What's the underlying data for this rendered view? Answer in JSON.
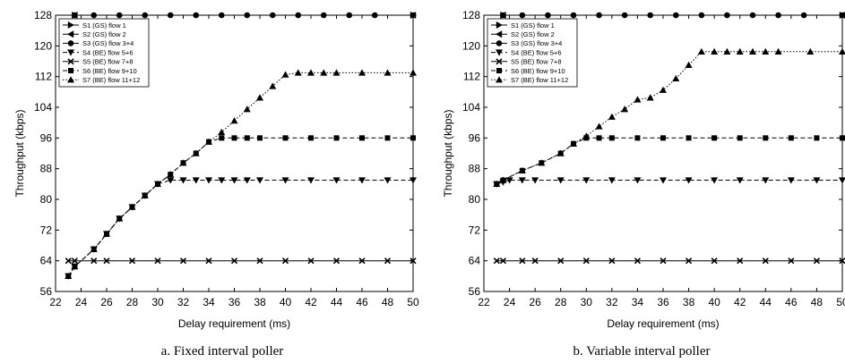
{
  "chart_data": [
    {
      "type": "line",
      "caption": "a. Fixed interval poller",
      "xlabel": "Delay requirement (ms)",
      "ylabel": "Throughput (kbps)",
      "xlim": [
        22,
        50
      ],
      "ylim": [
        56,
        128
      ],
      "xticks": [
        22,
        24,
        26,
        28,
        30,
        32,
        34,
        36,
        38,
        40,
        42,
        44,
        46,
        48,
        50
      ],
      "yticks": [
        56,
        64,
        72,
        80,
        88,
        96,
        104,
        112,
        120,
        128
      ],
      "legend_position": "top-left",
      "series": [
        {
          "name": "S1 (GS) flow 1",
          "marker": "tri-right",
          "line": "solid",
          "x": [
            23.5,
            50
          ],
          "y": [
            128,
            128
          ]
        },
        {
          "name": "S2 (GS) flow 2",
          "marker": "tri-left",
          "line": "solid",
          "x": [
            23.5,
            50
          ],
          "y": [
            128,
            128
          ]
        },
        {
          "name": "S3 (GS) flow 3+4",
          "marker": "circle",
          "line": "solid",
          "x": [
            23.5,
            25,
            27,
            29,
            31,
            33,
            35,
            37,
            39,
            41,
            43,
            45,
            47,
            50
          ],
          "y": [
            128,
            128,
            128,
            128,
            128,
            128,
            128,
            128,
            128,
            128,
            128,
            128,
            128,
            128
          ]
        },
        {
          "name": "S4 (BE) flow 5+6",
          "marker": "tri-down",
          "line": "dashed",
          "x": [
            23,
            23.5,
            25,
            26,
            27,
            28,
            29,
            30,
            31,
            32,
            33,
            34,
            35,
            36,
            37,
            38,
            40,
            42,
            44,
            46,
            48,
            50
          ],
          "y": [
            60,
            62.5,
            67,
            71,
            75,
            78,
            81,
            84,
            85,
            85,
            85,
            85,
            85,
            85,
            85,
            85,
            85,
            85,
            85,
            85,
            85,
            85
          ]
        },
        {
          "name": "S5 (BE) flow 7+8",
          "marker": "cross",
          "line": "solid",
          "x": [
            23,
            23.5,
            25,
            26,
            28,
            30,
            32,
            34,
            36,
            38,
            40,
            42,
            44,
            46,
            48,
            50
          ],
          "y": [
            64,
            64,
            64,
            64,
            64,
            64,
            64,
            64,
            64,
            64,
            64,
            64,
            64,
            64,
            64,
            64
          ]
        },
        {
          "name": "S6 (BE) flow 9+10",
          "marker": "square",
          "line": "dashed",
          "x": [
            23,
            23.5,
            25,
            26,
            27,
            28,
            29,
            30,
            31,
            32,
            33,
            34,
            35,
            36,
            37,
            38,
            40,
            42,
            44,
            46,
            48,
            50
          ],
          "y": [
            60,
            62.5,
            67,
            71,
            75,
            78,
            81,
            84,
            86.5,
            89.5,
            92,
            95,
            96,
            96,
            96,
            96,
            96,
            96,
            96,
            96,
            96,
            96
          ]
        },
        {
          "name": "S7 (BE) flow 11+12",
          "marker": "tri-up",
          "line": "dotted",
          "x": [
            23,
            23.5,
            25,
            26,
            27,
            28,
            29,
            30,
            31,
            32,
            33,
            34,
            35,
            36,
            37,
            38,
            39,
            40,
            41,
            42,
            43,
            44,
            46,
            48,
            50
          ],
          "y": [
            60,
            62.5,
            67,
            71,
            75,
            78,
            81,
            84,
            86.5,
            89.5,
            92,
            95,
            97.5,
            100.5,
            103.5,
            106.5,
            109.5,
            112.5,
            113,
            113,
            113,
            113,
            113,
            113,
            113
          ]
        }
      ]
    },
    {
      "type": "line",
      "caption": "b. Variable interval poller",
      "xlabel": "Delay requirement (ms)",
      "ylabel": "Throughput (kbps)",
      "xlim": [
        22,
        50
      ],
      "ylim": [
        56,
        128
      ],
      "xticks": [
        22,
        24,
        26,
        28,
        30,
        32,
        34,
        36,
        38,
        40,
        42,
        44,
        46,
        48,
        50
      ],
      "yticks": [
        56,
        64,
        72,
        80,
        88,
        96,
        104,
        112,
        120,
        128
      ],
      "legend_position": "top-left",
      "series": [
        {
          "name": "S1 (GS) flow 1",
          "marker": "tri-right",
          "line": "solid",
          "x": [
            23.5,
            50
          ],
          "y": [
            128,
            128
          ]
        },
        {
          "name": "S2 (GS) flow 2",
          "marker": "tri-left",
          "line": "solid",
          "x": [
            23.5,
            50
          ],
          "y": [
            128,
            128
          ]
        },
        {
          "name": "S3 (GS) flow 3+4",
          "marker": "circle",
          "line": "solid",
          "x": [
            23.5,
            25,
            27,
            29,
            31,
            33,
            35,
            37,
            39,
            41,
            43,
            45,
            47,
            50
          ],
          "y": [
            128,
            128,
            128,
            128,
            128,
            128,
            128,
            128,
            128,
            128,
            128,
            128,
            128,
            128
          ]
        },
        {
          "name": "S4 (BE) flow 5+6",
          "marker": "tri-down",
          "line": "dashed",
          "x": [
            23,
            23.5,
            24,
            25,
            26,
            28,
            30,
            32,
            34,
            36,
            38,
            40,
            42,
            44,
            46,
            48,
            50
          ],
          "y": [
            84,
            84.5,
            85,
            85,
            85,
            85,
            85,
            85,
            85,
            85,
            85,
            85,
            85,
            85,
            85,
            85,
            85
          ]
        },
        {
          "name": "S5 (BE) flow 7+8",
          "marker": "cross",
          "line": "solid",
          "x": [
            23,
            23.5,
            25,
            26,
            28,
            30,
            32,
            34,
            36,
            38,
            40,
            42,
            44,
            46,
            48,
            50
          ],
          "y": [
            64,
            64,
            64,
            64,
            64,
            64,
            64,
            64,
            64,
            64,
            64,
            64,
            64,
            64,
            64,
            64
          ]
        },
        {
          "name": "S6 (BE) flow 9+10",
          "marker": "square",
          "line": "dashed",
          "x": [
            23,
            23.5,
            25,
            26.5,
            28,
            29,
            30,
            31,
            32,
            34,
            36,
            38,
            40,
            42,
            44,
            46,
            48,
            50
          ],
          "y": [
            84,
            85,
            87.5,
            89.5,
            92,
            94.5,
            96,
            96,
            96,
            96,
            96,
            96,
            96,
            96,
            96,
            96,
            96,
            96
          ]
        },
        {
          "name": "S7 (BE) flow 11+12",
          "marker": "tri-up",
          "line": "dotted",
          "x": [
            23,
            23.5,
            25,
            26.5,
            28,
            29,
            30,
            31,
            32,
            33,
            34,
            35,
            36,
            37,
            38,
            39,
            40,
            41,
            42,
            43,
            44,
            45,
            47.5,
            50
          ],
          "y": [
            84,
            85,
            87.5,
            89.5,
            92,
            94.5,
            96.5,
            99,
            101.5,
            103.5,
            106,
            106.5,
            108.5,
            111.5,
            115,
            118.5,
            118.5,
            118.5,
            118.5,
            118.5,
            118.5,
            118.5,
            118.5,
            118.5
          ]
        }
      ]
    }
  ]
}
